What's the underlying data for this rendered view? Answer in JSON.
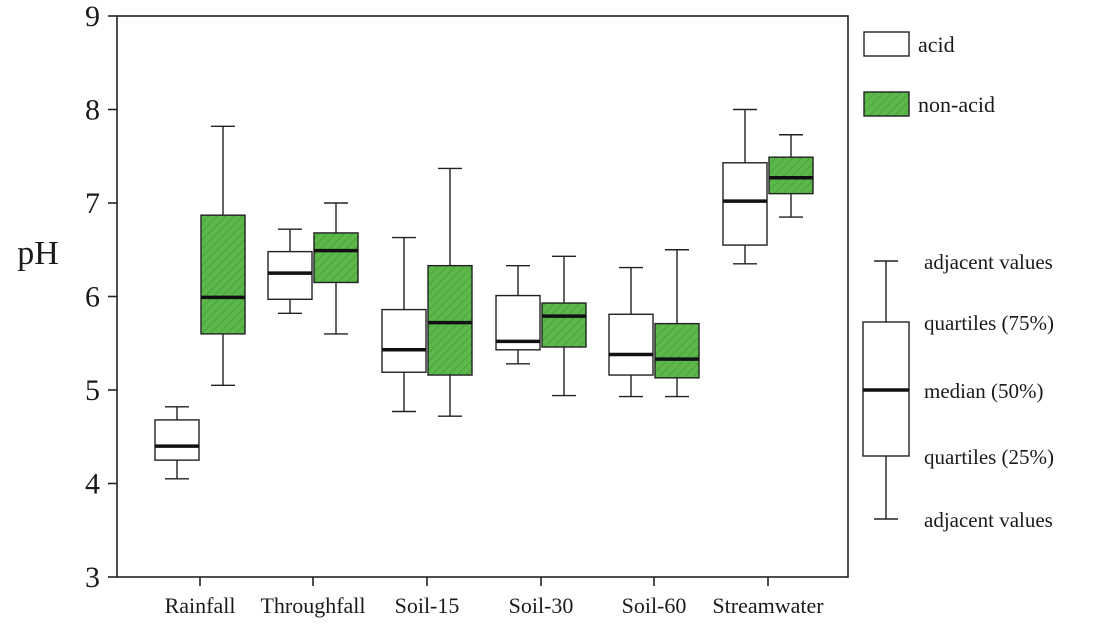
{
  "chart_data": {
    "type": "boxplot",
    "ylabel": "pH",
    "xlabel": "",
    "ylim": [
      3,
      9
    ],
    "yticks": [
      "3",
      "4",
      "5",
      "6",
      "7",
      "8",
      "9"
    ],
    "categories": [
      "Rainfall",
      "Throughfall",
      "Soil-15",
      "Soil-30",
      "Soil-60",
      "Streamwater"
    ],
    "series": [
      {
        "name": "acid",
        "color": "#ffffff",
        "boxes": [
          {
            "whisker_low": 4.05,
            "q1": 4.25,
            "median": 4.4,
            "q3": 4.68,
            "whisker_high": 4.82
          },
          {
            "whisker_low": 5.82,
            "q1": 5.97,
            "median": 6.25,
            "q3": 6.48,
            "whisker_high": 6.72
          },
          {
            "whisker_low": 4.77,
            "q1": 5.19,
            "median": 5.43,
            "q3": 5.86,
            "whisker_high": 6.63
          },
          {
            "whisker_low": 5.28,
            "q1": 5.43,
            "median": 5.52,
            "q3": 6.01,
            "whisker_high": 6.33
          },
          {
            "whisker_low": 4.93,
            "q1": 5.16,
            "median": 5.38,
            "q3": 5.81,
            "whisker_high": 6.31
          },
          {
            "whisker_low": 6.35,
            "q1": 6.55,
            "median": 7.02,
            "q3": 7.43,
            "whisker_high": 8.0
          }
        ]
      },
      {
        "name": "non-acid",
        "color": "#5cb84a",
        "boxes": [
          {
            "whisker_low": 5.05,
            "q1": 5.6,
            "median": 5.99,
            "q3": 6.87,
            "whisker_high": 7.82
          },
          {
            "whisker_low": 5.6,
            "q1": 6.15,
            "median": 6.49,
            "q3": 6.68,
            "whisker_high": 7.0
          },
          {
            "whisker_low": 4.72,
            "q1": 5.16,
            "median": 5.72,
            "q3": 6.33,
            "whisker_high": 7.37
          },
          {
            "whisker_low": 4.94,
            "q1": 5.46,
            "median": 5.79,
            "q3": 5.93,
            "whisker_high": 6.43
          },
          {
            "whisker_low": 4.93,
            "q1": 5.13,
            "median": 5.33,
            "q3": 5.71,
            "whisker_high": 6.5
          },
          {
            "whisker_low": 6.85,
            "q1": 7.1,
            "median": 7.27,
            "q3": 7.49,
            "whisker_high": 7.73
          }
        ]
      }
    ],
    "legend": {
      "position": "top-right",
      "items": [
        "acid",
        "non-acid"
      ]
    },
    "key": {
      "labels": [
        "adjacent values",
        "quartiles (75%)",
        "median (50%)",
        "quartiles (25%)",
        "adjacent values"
      ]
    },
    "grid": false
  }
}
